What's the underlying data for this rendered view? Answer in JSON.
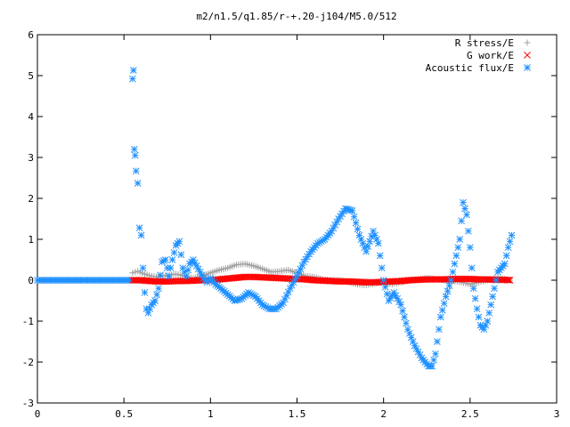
{
  "chart_data": {
    "type": "scatter",
    "title": "m2/n1.5/q1.85/r-+.20-j104/M5.0/512",
    "xlabel": "",
    "ylabel": "",
    "xlim": [
      0,
      3
    ],
    "ylim": [
      -3,
      6
    ],
    "x_ticks": [
      "0",
      "0.5",
      "1",
      "1.5",
      "2",
      "2.5",
      "3"
    ],
    "y_ticks": [
      "-3",
      "-2",
      "-1",
      "0",
      "1",
      "2",
      "3",
      "4",
      "5",
      "6"
    ],
    "grid": false,
    "legend_position": "top-right",
    "series": [
      {
        "name": "R stress/E",
        "marker": "plus",
        "color": "#a0a0a0",
        "x": [
          0.55,
          0.58,
          0.62,
          0.66,
          0.7,
          0.75,
          0.8,
          0.85,
          0.9,
          0.95,
          1.0,
          1.05,
          1.1,
          1.15,
          1.2,
          1.25,
          1.3,
          1.35,
          1.4,
          1.45,
          1.5,
          1.55,
          1.6,
          1.65,
          1.7,
          1.75,
          1.8,
          1.85,
          1.9,
          1.95,
          2.0,
          2.05,
          2.1,
          2.15,
          2.2,
          2.25,
          2.3,
          2.35,
          2.4,
          2.45,
          2.5,
          2.55,
          2.6,
          2.65,
          2.7,
          2.73
        ],
        "y": [
          0.18,
          0.22,
          0.15,
          0.1,
          0.08,
          0.12,
          0.15,
          0.1,
          0.05,
          0.1,
          0.18,
          0.25,
          0.3,
          0.38,
          0.4,
          0.35,
          0.28,
          0.2,
          0.22,
          0.25,
          0.18,
          0.1,
          0.08,
          0.02,
          0.0,
          0.0,
          -0.05,
          -0.1,
          -0.12,
          -0.08,
          -0.05,
          -0.1,
          -0.05,
          0.0,
          0.02,
          0.05,
          0.03,
          0.0,
          -0.02,
          -0.05,
          -0.1,
          -0.05,
          0.0,
          0.05,
          0.03,
          0.0
        ]
      },
      {
        "name": "G work/E",
        "marker": "cross",
        "color": "#ff0000",
        "x": [
          0.55,
          0.6,
          0.65,
          0.7,
          0.75,
          0.8,
          0.85,
          0.9,
          0.95,
          1.0,
          1.05,
          1.1,
          1.15,
          1.2,
          1.25,
          1.3,
          1.35,
          1.4,
          1.45,
          1.5,
          1.55,
          1.6,
          1.65,
          1.7,
          1.75,
          1.8,
          1.85,
          1.9,
          1.95,
          2.0,
          2.05,
          2.1,
          2.15,
          2.2,
          2.25,
          2.3,
          2.35,
          2.4,
          2.45,
          2.5,
          2.55,
          2.6,
          2.65,
          2.7,
          2.73
        ],
        "y": [
          0.0,
          0.0,
          -0.02,
          -0.03,
          -0.03,
          -0.02,
          -0.02,
          -0.01,
          0.0,
          0.0,
          0.02,
          0.04,
          0.06,
          0.08,
          0.08,
          0.07,
          0.06,
          0.05,
          0.04,
          0.03,
          0.02,
          0.0,
          -0.01,
          -0.02,
          -0.03,
          -0.03,
          -0.04,
          -0.05,
          -0.05,
          -0.04,
          -0.03,
          -0.02,
          0.0,
          0.01,
          0.02,
          0.02,
          0.02,
          0.03,
          0.03,
          0.03,
          0.02,
          0.02,
          0.01,
          0.01,
          0.0
        ]
      },
      {
        "name": "Acoustic flux/E",
        "marker": "star",
        "color": "#1e90ff",
        "x": [
          0.55,
          0.555,
          0.56,
          0.565,
          0.57,
          0.58,
          0.59,
          0.6,
          0.61,
          0.62,
          0.63,
          0.64,
          0.66,
          0.68,
          0.7,
          0.72,
          0.74,
          0.76,
          0.78,
          0.8,
          0.82,
          0.84,
          0.86,
          0.88,
          0.9,
          0.92,
          0.94,
          0.96,
          0.98,
          1.0,
          1.03,
          1.06,
          1.1,
          1.14,
          1.18,
          1.22,
          1.26,
          1.3,
          1.34,
          1.38,
          1.42,
          1.46,
          1.5,
          1.54,
          1.58,
          1.62,
          1.66,
          1.7,
          1.74,
          1.78,
          1.82,
          1.86,
          1.9,
          1.94,
          1.97,
          2.0,
          2.03,
          2.06,
          2.1,
          2.14,
          2.18,
          2.22,
          2.26,
          2.28,
          2.3,
          2.33,
          2.36,
          2.39,
          2.42,
          2.44,
          2.46,
          2.48,
          2.5,
          2.52,
          2.54,
          2.56,
          2.58,
          2.6,
          2.62,
          2.64,
          2.66,
          2.68,
          2.7,
          2.72,
          2.74
        ],
        "y": [
          4.92,
          5.13,
          3.2,
          3.05,
          2.67,
          2.37,
          1.28,
          1.1,
          0.3,
          -0.3,
          -0.7,
          -0.8,
          -0.6,
          -0.5,
          -0.2,
          0.45,
          0.5,
          0.1,
          0.5,
          0.85,
          0.95,
          0.3,
          0.1,
          0.4,
          0.5,
          0.35,
          0.2,
          0.05,
          -0.05,
          0.05,
          -0.1,
          -0.2,
          -0.35,
          -0.5,
          -0.45,
          -0.3,
          -0.4,
          -0.6,
          -0.7,
          -0.7,
          -0.55,
          -0.2,
          0.1,
          0.45,
          0.7,
          0.9,
          1.0,
          1.2,
          1.5,
          1.75,
          1.7,
          1.1,
          0.7,
          1.2,
          0.9,
          0.0,
          -0.5,
          -0.3,
          -0.6,
          -1.2,
          -1.6,
          -1.9,
          -2.1,
          -2.1,
          -1.8,
          -0.9,
          -0.4,
          0.0,
          0.6,
          1.0,
          1.9,
          1.6,
          0.8,
          -0.2,
          -0.7,
          -1.1,
          -1.2,
          -1.0,
          -0.6,
          -0.2,
          0.2,
          0.3,
          0.4,
          0.8,
          1.1
        ]
      }
    ]
  }
}
